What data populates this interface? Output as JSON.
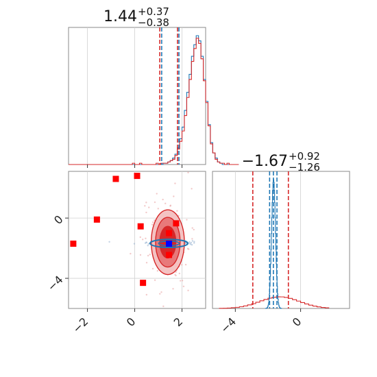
{
  "colors": {
    "red": "#d62728",
    "red_fill_dark": "#d62728",
    "red_fill_mid": "#e8797a",
    "red_fill_light": "#f4c2c2",
    "blue": "#1f77b4",
    "blue_square": "#0000ff",
    "grid": "#d0d0d0",
    "frame": "#8a8a8a"
  },
  "titles": {
    "p1": {
      "median": "1.44",
      "plus": "+0.37",
      "minus": "−0.38"
    },
    "p2": {
      "median": "−1.67",
      "plus": "+0.92",
      "minus": "−1.26"
    }
  },
  "chart_data": [
    {
      "type": "histogram",
      "panel": "marginal-p1",
      "xlim": [
        -2.8,
        3.0
      ],
      "xticks": [
        -2,
        0,
        2
      ],
      "red_quantiles": [
        1.06,
        1.81
      ],
      "blue_quantiles": [
        1.14,
        1.87
      ],
      "red_hist": {
        "edges_start": -2.8,
        "bin_width": 0.1,
        "counts": [
          0,
          0,
          0,
          0,
          0,
          0,
          0,
          0,
          0,
          0,
          0,
          0,
          0,
          0,
          0,
          0,
          0,
          0,
          0,
          0,
          0,
          0,
          0,
          0,
          0,
          0,
          0,
          1,
          0,
          0,
          1,
          0,
          0,
          0,
          0,
          0,
          0,
          1,
          0,
          1,
          1,
          1,
          2,
          3,
          4,
          7,
          12,
          18,
          26,
          38,
          52,
          66,
          80,
          90,
          98,
          94,
          82,
          65,
          48,
          30,
          16,
          9,
          4,
          2,
          1,
          1,
          0,
          1,
          0,
          0,
          0,
          0
        ]
      },
      "blue_hist": {
        "edges_start": -2.8,
        "bin_width": 0.1,
        "counts": [
          0,
          0,
          0,
          0,
          0,
          0,
          0,
          0,
          0,
          0,
          0,
          0,
          0,
          0,
          0,
          0,
          0,
          0,
          0,
          0,
          0,
          0,
          0,
          0,
          0,
          0,
          0,
          0,
          0,
          0,
          0,
          0,
          0,
          0,
          0,
          0,
          0,
          0,
          0,
          0,
          1,
          1,
          2,
          3,
          5,
          8,
          13,
          20,
          29,
          42,
          56,
          70,
          84,
          93,
          100,
          96,
          84,
          66,
          49,
          31,
          17,
          9,
          5,
          2,
          1,
          0,
          0,
          0,
          0,
          0,
          0,
          0
        ]
      }
    },
    {
      "type": "scatter-contour",
      "panel": "joint",
      "xlim": [
        -2.8,
        3.0
      ],
      "ylim": [
        -6.0,
        3.1
      ],
      "xticks": [
        -2,
        0,
        2
      ],
      "yticks": [
        0,
        -4
      ],
      "red_squares": [
        {
          "x": -0.8,
          "y": 2.6
        },
        {
          "x": 0.1,
          "y": 2.8
        },
        {
          "x": -1.6,
          "y": -0.1
        },
        {
          "x": -2.6,
          "y": -1.7
        },
        {
          "x": 0.25,
          "y": -0.55
        },
        {
          "x": 1.75,
          "y": -0.35
        },
        {
          "x": 1.45,
          "y": -1.0
        },
        {
          "x": 1.45,
          "y": -2.45
        },
        {
          "x": 0.35,
          "y": -4.3
        }
      ],
      "blue_square": {
        "x": 1.45,
        "y": -1.7
      },
      "red_contour_center": {
        "x": 1.4,
        "y": -1.6
      },
      "red_contour_levels": [
        {
          "rx": 0.7,
          "ry": 2.15,
          "fill": "light"
        },
        {
          "rx": 0.52,
          "ry": 1.65,
          "fill": "mid"
        },
        {
          "rx": 0.34,
          "ry": 1.05,
          "fill": "dark"
        }
      ],
      "blue_contour": {
        "x": 1.45,
        "y": -1.68,
        "rx": 0.8,
        "ry": 0.27
      }
    },
    {
      "type": "histogram",
      "panel": "marginal-p2",
      "xlim": [
        -5.4,
        3.0
      ],
      "xticks": [
        -4,
        0
      ],
      "red_quantiles": [
        -2.93,
        -0.75
      ],
      "blue_quantiles": [
        -1.9,
        -1.45
      ],
      "blue_center": -1.67,
      "blue_sigma": 0.12
    }
  ]
}
